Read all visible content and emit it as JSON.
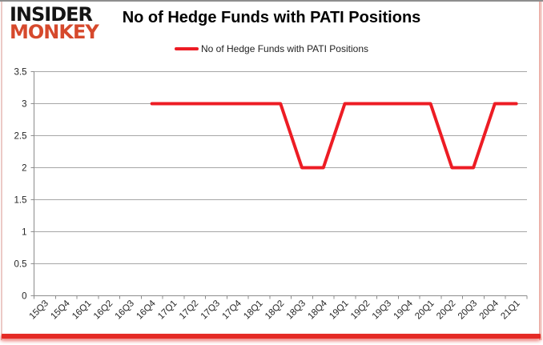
{
  "brand": {
    "line1": "INSIDER",
    "line2": "MONKEY"
  },
  "header": {
    "title": "No of Hedge Funds with PATI Positions"
  },
  "legend": {
    "label": "No of Hedge Funds with PATI Positions"
  },
  "colors": {
    "series_red": "#ed1c24",
    "logo_red": "#d6492c",
    "grid": "#a6a6a6",
    "axis": "#8c8c8c",
    "label_text": "#262626",
    "bottom_bar_red": "#e52a25"
  },
  "chart_data": {
    "type": "line",
    "title": "No of Hedge Funds with PATI Positions",
    "categories": [
      "15Q3",
      "15Q4",
      "16Q1",
      "16Q2",
      "16Q3",
      "16Q4",
      "17Q1",
      "17Q2",
      "17Q3",
      "17Q4",
      "18Q1",
      "18Q2",
      "18Q3",
      "18Q4",
      "19Q1",
      "19Q2",
      "19Q3",
      "19Q4",
      "20Q1",
      "20Q2",
      "20Q3",
      "20Q4",
      "21Q1"
    ],
    "series": [
      {
        "name": "No of Hedge Funds with PATI Positions",
        "color": "#ed1c24",
        "values": [
          null,
          null,
          null,
          null,
          null,
          3,
          3,
          3,
          3,
          3,
          3,
          3,
          2,
          2,
          3,
          3,
          3,
          3,
          3,
          2,
          2,
          3,
          3
        ]
      }
    ],
    "ylim": [
      0,
      3.5
    ],
    "yticks": [
      0,
      0.5,
      1,
      1.5,
      2,
      2.5,
      3,
      3.5
    ],
    "xlabel": "",
    "ylabel": "",
    "grid": true,
    "legend_position": "top-center",
    "x_label_rotation": -45
  }
}
